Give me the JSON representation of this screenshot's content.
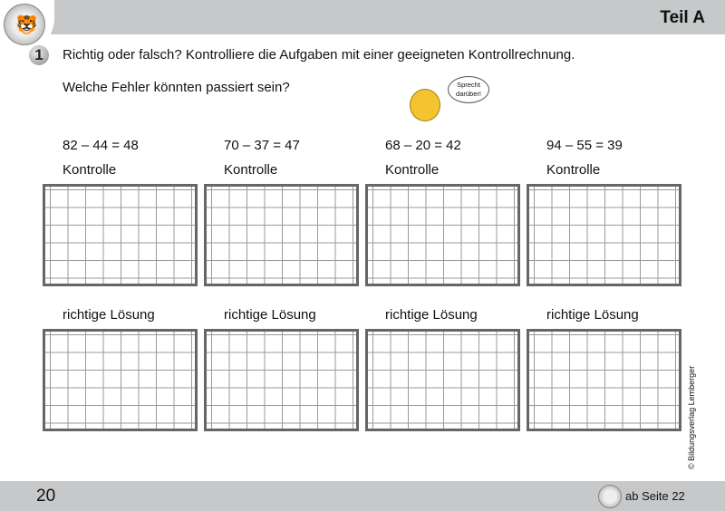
{
  "header": {
    "title": "Teil A"
  },
  "task": {
    "number": "1",
    "instruction": "Richtig oder falsch? Kontrolliere die Aufgaben mit einer geeigneten Kontrollrechnung.",
    "question": "Welche Fehler könnten passiert sein?",
    "bubble": "Sprecht darüber!"
  },
  "exercises": [
    {
      "equation": "82 – 44 = 48",
      "check_label": "Kontrolle",
      "solution_label": "richtige Lösung"
    },
    {
      "equation": "70 – 37 = 47",
      "check_label": "Kontrolle",
      "solution_label": "richtige Lösung"
    },
    {
      "equation": "68 – 20 = 42",
      "check_label": "Kontrolle",
      "solution_label": "richtige Lösung"
    },
    {
      "equation": "94 – 55 = 39",
      "check_label": "Kontrolle",
      "solution_label": "richtige Lösung"
    }
  ],
  "footer": {
    "page_number": "20",
    "reference": "ab Seite 22",
    "copyright": "© Bildungsverlag Lemberger"
  }
}
